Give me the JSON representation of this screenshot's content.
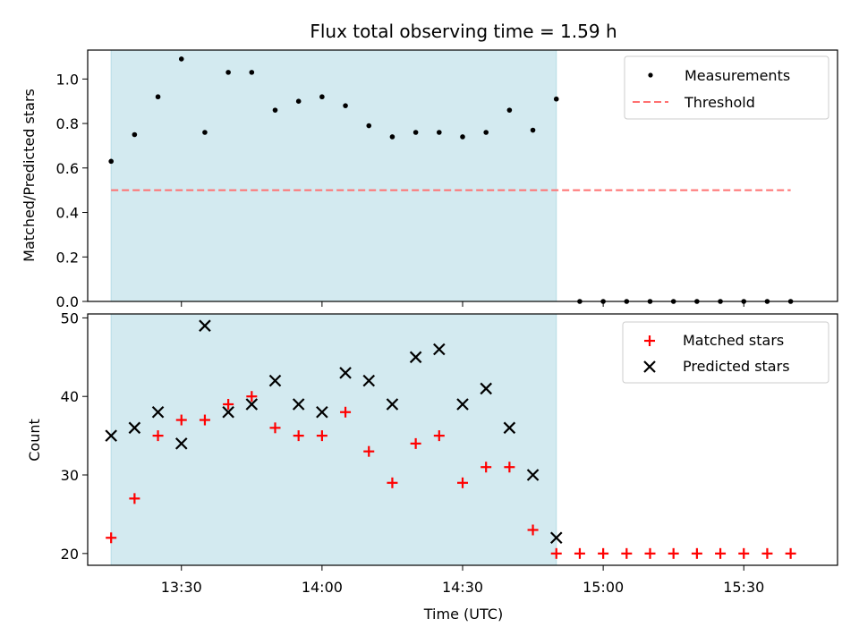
{
  "chart_data": [
    {
      "type": "scatter",
      "title": "Flux total observing time = 1.59 h",
      "xlabel": "",
      "ylabel": "Matched/Predicted stars",
      "ylim": [
        0,
        1.13
      ],
      "yticks": [
        "0.0",
        "0.2",
        "0.4",
        "0.6",
        "0.8",
        "1.0"
      ],
      "x_range": [
        "13:10",
        "15:50"
      ],
      "observing_window": [
        "13:15",
        "14:50"
      ],
      "legend_position": "top-right",
      "grid": false,
      "series": [
        {
          "name": "Measurements",
          "marker": "dot",
          "color": "#000000",
          "x": [
            "13:15",
            "13:20",
            "13:25",
            "13:30",
            "13:35",
            "13:40",
            "13:45",
            "13:50",
            "13:55",
            "14:00",
            "14:05",
            "14:10",
            "14:15",
            "14:20",
            "14:25",
            "14:30",
            "14:35",
            "14:40",
            "14:45",
            "14:50",
            "14:55",
            "15:00",
            "15:05",
            "15:10",
            "15:15",
            "15:20",
            "15:25",
            "15:30",
            "15:35",
            "15:40"
          ],
          "y": [
            0.63,
            0.75,
            0.92,
            1.09,
            0.76,
            1.03,
            1.03,
            0.86,
            0.9,
            0.92,
            0.88,
            0.79,
            0.74,
            0.76,
            0.76,
            0.74,
            0.76,
            0.86,
            0.77,
            0.91,
            0,
            0,
            0,
            0,
            0,
            0,
            0,
            0,
            0,
            0
          ]
        },
        {
          "name": "Threshold",
          "marker": "dashed-line",
          "color": "#ff7070",
          "x": [
            "13:15",
            "15:40"
          ],
          "y": [
            0.5,
            0.5
          ]
        }
      ]
    },
    {
      "type": "scatter",
      "title": "",
      "xlabel": "Time (UTC)",
      "ylabel": "Count",
      "ylim": [
        18.5,
        50.5
      ],
      "yticks": [
        "20",
        "30",
        "40",
        "50"
      ],
      "x_range": [
        "13:10",
        "15:50"
      ],
      "xticks": [
        "13:30",
        "14:00",
        "14:30",
        "15:00",
        "15:30"
      ],
      "observing_window": [
        "13:15",
        "14:50"
      ],
      "legend_position": "top-right",
      "grid": false,
      "series": [
        {
          "name": "Matched stars",
          "marker": "plus",
          "color": "#ff0000",
          "x": [
            "13:15",
            "13:20",
            "13:25",
            "13:30",
            "13:35",
            "13:40",
            "13:45",
            "13:50",
            "13:55",
            "14:00",
            "14:05",
            "14:10",
            "14:15",
            "14:20",
            "14:25",
            "14:30",
            "14:35",
            "14:40",
            "14:45",
            "14:50",
            "14:55",
            "15:00",
            "15:05",
            "15:10",
            "15:15",
            "15:20",
            "15:25",
            "15:30",
            "15:35",
            "15:40"
          ],
          "y": [
            22,
            27,
            35,
            37,
            37,
            39,
            40,
            36,
            35,
            35,
            38,
            33,
            29,
            34,
            35,
            29,
            31,
            31,
            23,
            20,
            20,
            20,
            20,
            20,
            20,
            20,
            20,
            20,
            20,
            20
          ]
        },
        {
          "name": "Predicted stars",
          "marker": "x",
          "color": "#000000",
          "x": [
            "13:15",
            "13:20",
            "13:25",
            "13:30",
            "13:35",
            "13:40",
            "13:45",
            "13:50",
            "13:55",
            "14:00",
            "14:05",
            "14:10",
            "14:15",
            "14:20",
            "14:25",
            "14:30",
            "14:35",
            "14:40",
            "14:45",
            "14:50"
          ],
          "y": [
            35,
            36,
            38,
            34,
            49,
            38,
            39,
            42,
            39,
            38,
            43,
            42,
            39,
            45,
            46,
            39,
            41,
            36,
            30,
            22
          ]
        }
      ]
    }
  ],
  "colors": {
    "observing_window_fill": "#d3eaf0",
    "observing_window_edge": "#b7dde6",
    "threshold": "#ff7070",
    "matched": "#ff0000",
    "predicted": "#000000"
  }
}
